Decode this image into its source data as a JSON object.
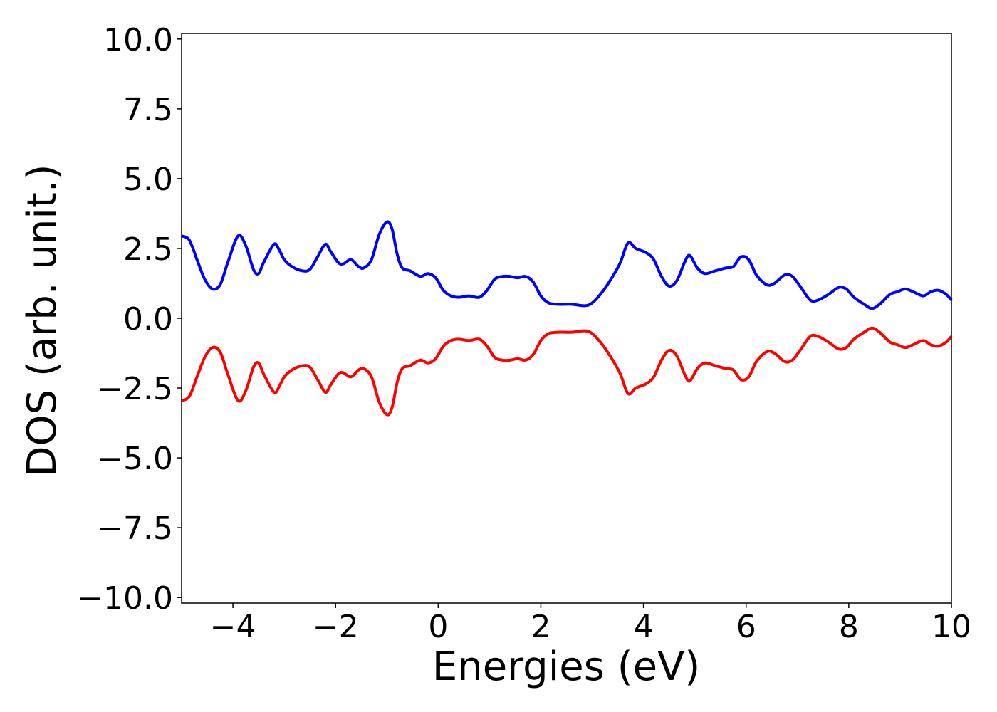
{
  "chart_data": {
    "type": "line",
    "title": "",
    "xlabel": "Energies (eV)",
    "ylabel": "DOS (arb. unit.)",
    "xlim": [
      -5,
      10
    ],
    "ylim": [
      -10.2,
      10.2
    ],
    "xticks": [
      -4,
      -2,
      0,
      2,
      4,
      6,
      8,
      10
    ],
    "xtick_labels": [
      "−4",
      "−2",
      "0",
      "2",
      "4",
      "6",
      "8",
      "10"
    ],
    "yticks": [
      -10,
      -7.5,
      -5,
      -2.5,
      0,
      2.5,
      5,
      7.5,
      10
    ],
    "ytick_labels": [
      "−10.0",
      "−7.5",
      "−5.0",
      "−2.5",
      "0.0",
      "2.5",
      "5.0",
      "7.5",
      "10.0"
    ],
    "grid": false,
    "legend": "none",
    "series": [
      {
        "color": "#0000ff",
        "x": [
          -5.0,
          -4.85,
          -4.7,
          -4.55,
          -4.4,
          -4.25,
          -4.1,
          -3.9,
          -3.75,
          -3.6,
          -3.5,
          -3.4,
          -3.2,
          -3.1,
          -3.0,
          -2.85,
          -2.65,
          -2.5,
          -2.35,
          -2.2,
          -2.1,
          -1.95,
          -1.85,
          -1.7,
          -1.55,
          -1.45,
          -1.3,
          -1.15,
          -1.0,
          -0.9,
          -0.8,
          -0.7,
          -0.55,
          -0.35,
          -0.2,
          -0.05,
          0.1,
          0.25,
          0.4,
          0.6,
          0.8,
          0.95,
          1.1,
          1.25,
          1.4,
          1.55,
          1.7,
          1.85,
          2.0,
          2.15,
          2.35,
          2.6,
          2.85,
          3.0,
          3.2,
          3.4,
          3.55,
          3.7,
          3.85,
          4.05,
          4.2,
          4.35,
          4.5,
          4.65,
          4.8,
          4.9,
          5.05,
          5.2,
          5.4,
          5.6,
          5.75,
          5.9,
          6.05,
          6.2,
          6.4,
          6.55,
          6.75,
          6.9,
          7.05,
          7.25,
          7.4,
          7.6,
          7.8,
          7.95,
          8.1,
          8.3,
          8.45,
          8.6,
          8.8,
          8.95,
          9.1,
          9.25,
          9.45,
          9.6,
          9.75,
          9.9,
          10.0
        ],
        "y": [
          2.95,
          2.8,
          2.1,
          1.4,
          1.05,
          1.2,
          2.0,
          2.95,
          2.6,
          1.75,
          1.6,
          2.0,
          2.65,
          2.45,
          2.1,
          1.85,
          1.7,
          1.75,
          2.2,
          2.65,
          2.4,
          2.0,
          1.95,
          2.1,
          1.85,
          1.8,
          2.1,
          3.0,
          3.45,
          3.2,
          2.3,
          1.8,
          1.7,
          1.5,
          1.6,
          1.45,
          1.0,
          0.8,
          0.75,
          0.8,
          0.75,
          1.0,
          1.4,
          1.5,
          1.5,
          1.45,
          1.5,
          1.3,
          0.8,
          0.55,
          0.5,
          0.5,
          0.45,
          0.55,
          0.95,
          1.5,
          2.0,
          2.7,
          2.5,
          2.35,
          2.1,
          1.5,
          1.15,
          1.35,
          2.0,
          2.25,
          1.8,
          1.6,
          1.7,
          1.8,
          1.85,
          2.2,
          2.1,
          1.55,
          1.2,
          1.25,
          1.55,
          1.5,
          1.15,
          0.65,
          0.65,
          0.85,
          1.1,
          1.05,
          0.75,
          0.5,
          0.35,
          0.5,
          0.85,
          0.95,
          1.05,
          0.95,
          0.8,
          0.95,
          1.0,
          0.85,
          0.65
        ]
      },
      {
        "color": "#ff0000",
        "x": [
          -5.0,
          -4.85,
          -4.7,
          -4.55,
          -4.4,
          -4.25,
          -4.1,
          -3.9,
          -3.75,
          -3.6,
          -3.5,
          -3.4,
          -3.2,
          -3.1,
          -3.0,
          -2.85,
          -2.65,
          -2.5,
          -2.35,
          -2.2,
          -2.1,
          -1.95,
          -1.85,
          -1.7,
          -1.55,
          -1.45,
          -1.3,
          -1.15,
          -1.0,
          -0.9,
          -0.8,
          -0.7,
          -0.55,
          -0.35,
          -0.2,
          -0.05,
          0.1,
          0.25,
          0.4,
          0.6,
          0.8,
          0.95,
          1.1,
          1.25,
          1.4,
          1.55,
          1.7,
          1.85,
          2.0,
          2.15,
          2.35,
          2.6,
          2.85,
          3.0,
          3.2,
          3.4,
          3.55,
          3.7,
          3.85,
          4.05,
          4.2,
          4.35,
          4.5,
          4.65,
          4.8,
          4.9,
          5.05,
          5.2,
          5.4,
          5.6,
          5.75,
          5.9,
          6.05,
          6.2,
          6.4,
          6.55,
          6.75,
          6.9,
          7.05,
          7.25,
          7.4,
          7.6,
          7.8,
          7.95,
          8.1,
          8.3,
          8.45,
          8.6,
          8.8,
          8.95,
          9.1,
          9.25,
          9.45,
          9.6,
          9.75,
          9.9,
          10.0
        ],
        "y": [
          -2.95,
          -2.8,
          -2.1,
          -1.4,
          -1.05,
          -1.2,
          -2.0,
          -2.95,
          -2.6,
          -1.75,
          -1.6,
          -2.0,
          -2.65,
          -2.45,
          -2.1,
          -1.85,
          -1.7,
          -1.75,
          -2.2,
          -2.65,
          -2.4,
          -2.0,
          -1.95,
          -2.1,
          -1.85,
          -1.8,
          -2.1,
          -3.0,
          -3.45,
          -3.2,
          -2.3,
          -1.8,
          -1.7,
          -1.5,
          -1.6,
          -1.45,
          -1.0,
          -0.8,
          -0.75,
          -0.8,
          -0.75,
          -1.0,
          -1.4,
          -1.5,
          -1.5,
          -1.45,
          -1.5,
          -1.3,
          -0.8,
          -0.55,
          -0.5,
          -0.5,
          -0.45,
          -0.55,
          -0.95,
          -1.5,
          -2.0,
          -2.7,
          -2.5,
          -2.35,
          -2.1,
          -1.5,
          -1.15,
          -1.35,
          -2.0,
          -2.25,
          -1.8,
          -1.6,
          -1.7,
          -1.8,
          -1.85,
          -2.2,
          -2.1,
          -1.55,
          -1.2,
          -1.25,
          -1.55,
          -1.5,
          -1.15,
          -0.65,
          -0.65,
          -0.85,
          -1.1,
          -1.05,
          -0.75,
          -0.5,
          -0.35,
          -0.5,
          -0.85,
          -0.95,
          -1.05,
          -0.95,
          -0.8,
          -0.95,
          -1.0,
          -0.85,
          -0.65
        ]
      }
    ]
  }
}
